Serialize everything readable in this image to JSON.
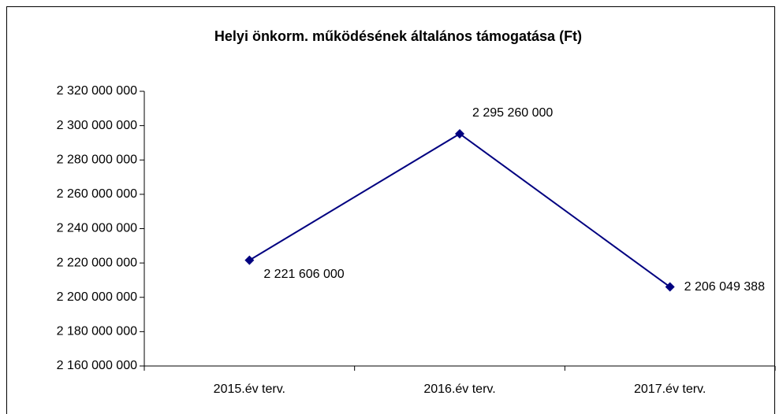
{
  "chart_data": {
    "type": "line",
    "title": "Helyi önkorm. működésének általános támogatása (Ft)",
    "categories": [
      "2015.év terv.",
      "2016.év terv.",
      "2017.év terv."
    ],
    "values": [
      2221606000,
      2295260000,
      2206049388
    ],
    "value_labels": [
      "2 221 606 000",
      "2 295 260 000",
      "2 206 049 388"
    ],
    "color": "#000080",
    "ylim": [
      2160000000,
      2320000000
    ],
    "yticks": [
      {
        "value": 2160000000,
        "label": "2 160 000 000"
      },
      {
        "value": 2180000000,
        "label": "2 180 000 000"
      },
      {
        "value": 2200000000,
        "label": "2 200 000 000"
      },
      {
        "value": 2220000000,
        "label": "2 220 000 000"
      },
      {
        "value": 2240000000,
        "label": "2 240 000 000"
      },
      {
        "value": 2260000000,
        "label": "2 260 000 000"
      },
      {
        "value": 2280000000,
        "label": "2 280 000 000"
      },
      {
        "value": 2300000000,
        "label": "2 300 000 000"
      },
      {
        "value": 2320000000,
        "label": "2 320 000 000"
      }
    ],
    "grid": false
  }
}
